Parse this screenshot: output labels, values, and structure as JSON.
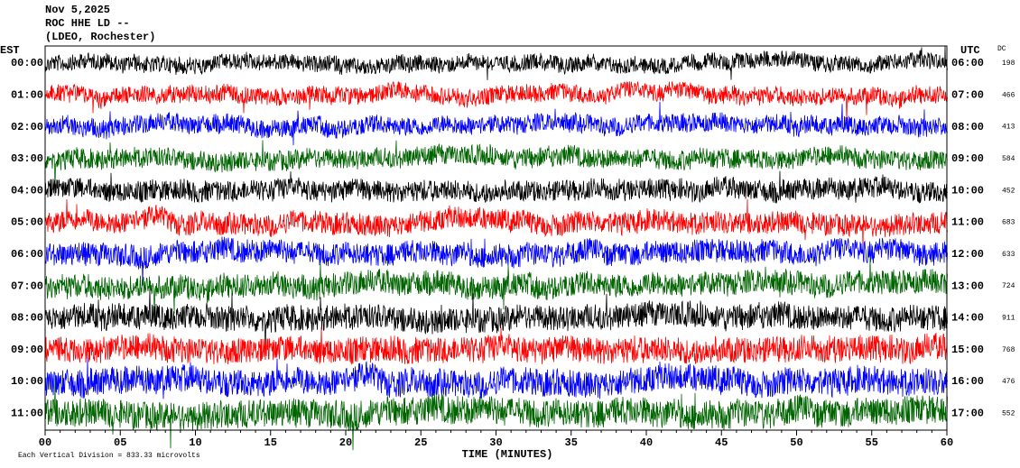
{
  "header": {
    "date": "Nov 5,2025",
    "station": "ROC HHE LD --",
    "network": "(LDEO, Rochester)"
  },
  "left_axis_title": "EST",
  "right_axis_title": "UTC",
  "dc_title": "DC",
  "rows": [
    {
      "est": "00:00",
      "utc": "06:00",
      "dc": 198
    },
    {
      "est": "01:00",
      "utc": "07:00",
      "dc": 466
    },
    {
      "est": "02:00",
      "utc": "08:00",
      "dc": 413
    },
    {
      "est": "03:00",
      "utc": "09:00",
      "dc": 584
    },
    {
      "est": "04:00",
      "utc": "10:00",
      "dc": 452
    },
    {
      "est": "05:00",
      "utc": "11:00",
      "dc": 683
    },
    {
      "est": "06:00",
      "utc": "12:00",
      "dc": 633
    },
    {
      "est": "07:00",
      "utc": "13:00",
      "dc": 724
    },
    {
      "est": "08:00",
      "utc": "14:00",
      "dc": 911
    },
    {
      "est": "09:00",
      "utc": "15:00",
      "dc": 768
    },
    {
      "est": "10:00",
      "utc": "16:00",
      "dc": 476
    },
    {
      "est": "11:00",
      "utc": "17:00",
      "dc": 552
    }
  ],
  "trace_colors": [
    "#000000",
    "#ff0000",
    "#0000ff",
    "#006400"
  ],
  "x_axis": {
    "labels": [
      "00",
      "05",
      "10",
      "15",
      "20",
      "25",
      "30",
      "35",
      "40",
      "45",
      "50",
      "55",
      "60"
    ],
    "title": "TIME (MINUTES)"
  },
  "footer": "Each Vertical Division = 833.33 microvolts"
}
